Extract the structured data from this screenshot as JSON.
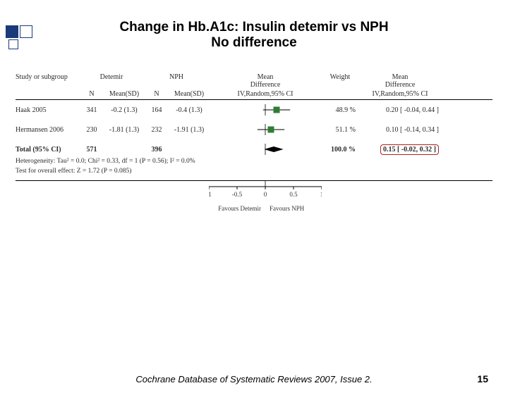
{
  "slide": {
    "title_line1": "Change in Hb.A1c: Insulin detemir vs NPH",
    "title_line2": "No difference",
    "citation": "Cochrane Database of Systematic Reviews 2007, Issue 2.",
    "page_number": "15"
  },
  "forest": {
    "type": "forest-plot",
    "header": {
      "study": "Study or subgroup",
      "group_a": "Detemir",
      "group_b": "NPH",
      "effect_top": "Mean",
      "effect_mid": "Difference",
      "effect_sub": "IV,Random,95% CI",
      "weight": "Weight",
      "effect_right_top": "Mean",
      "effect_right_mid": "Difference",
      "effect_right_sub": "IV,Random,95% CI",
      "n_label": "N",
      "meansd_label": "Mean(SD)"
    },
    "rows": [
      {
        "study": "Haak 2005",
        "n_a": "341",
        "mean_a": "-0.2 (1.3)",
        "n_b": "164",
        "mean_b": "-0.4 (1.3)",
        "weight": "48.9 %",
        "effect_text": "0.20 [ -0.04, 0.44 ]",
        "point": 0.2,
        "lo": -0.04,
        "hi": 0.44,
        "marker_color": "#2e7d32",
        "marker_size": 9
      },
      {
        "study": "Hermansen 2006",
        "n_a": "230",
        "mean_a": "-1.81 (1.3)",
        "n_b": "232",
        "mean_b": "-1.91 (1.3)",
        "weight": "51.1 %",
        "effect_text": "0.10 [ -0.14, 0.34 ]",
        "point": 0.1,
        "lo": -0.14,
        "hi": 0.34,
        "marker_color": "#2e7d32",
        "marker_size": 9
      }
    ],
    "total": {
      "label": "Total (95% CI)",
      "n_a": "571",
      "n_b": "396",
      "weight": "100.0 %",
      "effect_text": "0.15 [ -0.02, 0.32 ]",
      "point": 0.15,
      "lo": -0.02,
      "hi": 0.32,
      "diamond_color": "#000000"
    },
    "notes": {
      "hetero": "Heterogeneity: Tau² = 0.0; Chi² = 0.33, df = 1 (P = 0.56); I² = 0.0%",
      "overall": "Test for overall effect: Z = 1.72 (P = 0.085)"
    },
    "axis": {
      "xlim": [
        -1,
        1
      ],
      "ticks": [
        -1,
        -0.5,
        0,
        0.5,
        1
      ],
      "tick_labels": [
        "-1",
        "-0.5",
        "0",
        "0.5",
        "1"
      ],
      "line_color": "#000000",
      "tick_fontsize": 9,
      "favours_left": "Favours Detemir",
      "favours_right": "Favours NPH"
    },
    "plot_style": {
      "ci_line_color": "#000000",
      "ci_line_width": 1,
      "zero_line_color": "#000000",
      "background": "#ffffff",
      "highlight_border": "#b02020"
    }
  }
}
